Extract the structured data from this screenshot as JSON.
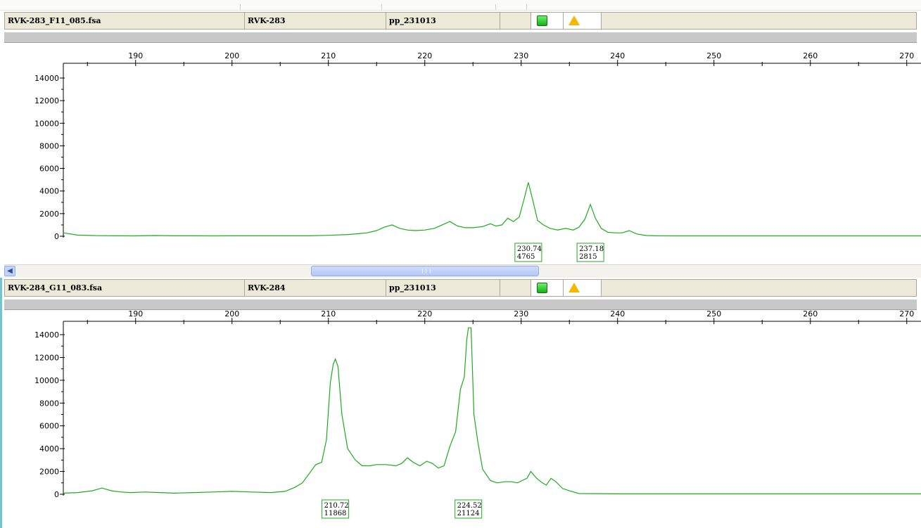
{
  "panels": [
    {
      "file": "RVK-283_F11_085.fsa",
      "sample": "RVK-283",
      "panel": "pp_231013",
      "status_icons": [
        "ok-green-square-icon",
        "warning-triangle-icon"
      ],
      "peak_labels": [
        {
          "size": "230.74",
          "height": "4765"
        },
        {
          "size": "237.18",
          "height": "2815"
        }
      ]
    },
    {
      "file": "RVK-284_G11_083.fsa",
      "sample": "RVK-284",
      "panel": "pp_231013",
      "status_icons": [
        "ok-green-square-icon",
        "warning-triangle-icon"
      ],
      "peak_labels": [
        {
          "size": "210.72",
          "height": "11868"
        },
        {
          "size": "224.52",
          "height": "21124"
        }
      ]
    }
  ],
  "colors": {
    "trace": "#1faa1f",
    "label_border": "#1faa1f",
    "header_bg": "#ece9d8",
    "selected_border": "#6fc6cf"
  },
  "chart_data": [
    {
      "type": "line",
      "title": "",
      "xlabel": "",
      "ylabel": "",
      "xlim": [
        182.5,
        275
      ],
      "ylim": [
        0,
        14600
      ],
      "x_ticks": [
        190,
        200,
        210,
        220,
        230,
        240,
        250,
        260,
        270
      ],
      "y_ticks": [
        0,
        2000,
        4000,
        6000,
        8000,
        10000,
        12000,
        14000
      ],
      "series": [
        {
          "x": [
            182.5,
            184,
            186,
            188,
            190,
            192,
            194,
            196,
            198,
            200,
            202,
            204,
            206,
            208,
            210,
            212,
            213,
            214,
            215,
            215.8,
            216.6,
            217.4,
            218.2,
            219,
            220,
            221,
            221.8,
            222.6,
            223.4,
            224.2,
            225,
            226,
            226.8,
            227.4,
            228,
            228.6,
            229.2,
            229.8,
            230.3,
            230.74,
            231.2,
            231.7,
            232.3,
            233,
            233.8,
            234.6,
            235.4,
            236,
            236.6,
            237.18,
            237.7,
            238.3,
            239,
            239.8,
            240.5,
            241.2,
            242,
            243,
            244,
            246,
            250,
            255,
            260,
            265,
            270,
            275
          ],
          "y": [
            300,
            100,
            50,
            40,
            30,
            60,
            40,
            40,
            30,
            40,
            40,
            40,
            40,
            40,
            80,
            150,
            220,
            300,
            500,
            800,
            1000,
            700,
            550,
            500,
            550,
            700,
            1000,
            1300,
            900,
            750,
            750,
            850,
            1100,
            900,
            1000,
            1600,
            1300,
            1700,
            3300,
            4765,
            3200,
            1400,
            1000,
            700,
            550,
            700,
            550,
            800,
            1500,
            2815,
            1600,
            700,
            350,
            300,
            300,
            500,
            200,
            60,
            40,
            30,
            30,
            30,
            30,
            30,
            30,
            30
          ]
        }
      ],
      "peak_labels": [
        {
          "x": 230.74,
          "y": 4765
        },
        {
          "x": 237.18,
          "y": 2815
        }
      ]
    },
    {
      "type": "line",
      "title": "",
      "xlabel": "",
      "ylabel": "",
      "xlim": [
        182.5,
        275
      ],
      "ylim": [
        0,
        14600
      ],
      "x_ticks": [
        190,
        200,
        210,
        220,
        230,
        240,
        250,
        260,
        270
      ],
      "y_ticks": [
        0,
        2000,
        4000,
        6000,
        8000,
        10000,
        12000,
        14000
      ],
      "series": [
        {
          "x": [
            182.5,
            184,
            185.5,
            186.5,
            187.5,
            188.5,
            189.5,
            191,
            192.5,
            194,
            196,
            198,
            200,
            202,
            204,
            205.5,
            206.5,
            207.3,
            208,
            208.7,
            209.3,
            209.8,
            210.2,
            210.5,
            210.72,
            211,
            211.4,
            212,
            212.8,
            213.5,
            214.3,
            215,
            216,
            217,
            217.6,
            218.2,
            218.8,
            219.5,
            220.2,
            220.8,
            221.4,
            222,
            222.6,
            223.2,
            223.7,
            224.1,
            224.35,
            224.52,
            224.8,
            225.1,
            225.5,
            226,
            226.8,
            227.5,
            228.3,
            229,
            229.6,
            230.1,
            230.6,
            231,
            231.6,
            232.2,
            232.6,
            233.1,
            233.6,
            234.3,
            235,
            236,
            240,
            250,
            260,
            270,
            275
          ],
          "y": [
            100,
            150,
            300,
            550,
            300,
            200,
            150,
            200,
            150,
            100,
            150,
            200,
            250,
            200,
            150,
            250,
            600,
            1000,
            1800,
            2600,
            2800,
            4800,
            9800,
            11400,
            11868,
            11200,
            7000,
            4000,
            3000,
            2500,
            2500,
            2600,
            2600,
            2500,
            2700,
            3200,
            2800,
            2500,
            2900,
            2700,
            2300,
            2500,
            4200,
            5500,
            9200,
            10300,
            13500,
            14600,
            14600,
            7000,
            4600,
            2200,
            1200,
            1000,
            1100,
            1100,
            1000,
            1200,
            1400,
            2000,
            1400,
            1000,
            800,
            1400,
            1100,
            500,
            300,
            60,
            40,
            40,
            40,
            40,
            40
          ]
        }
      ],
      "peak_labels": [
        {
          "x": 210.72,
          "y": 11868
        },
        {
          "x": 224.52,
          "y": 14600
        }
      ]
    }
  ]
}
